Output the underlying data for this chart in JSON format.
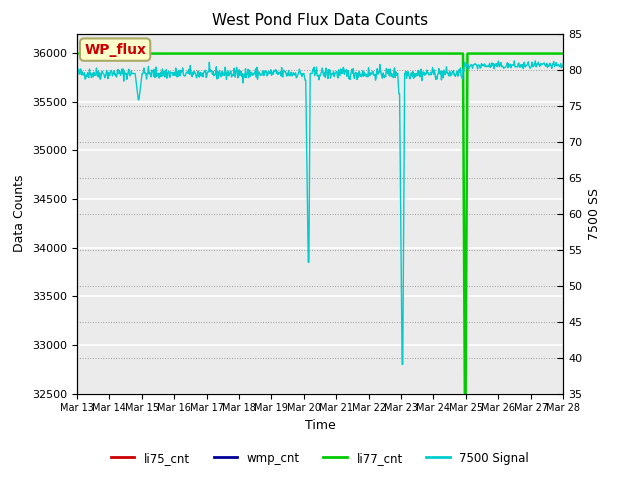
{
  "title": "West Pond Flux Data Counts",
  "ylabel_left": "Data Counts",
  "ylabel_right": "7500 SS",
  "xlabel": "Time",
  "ylim_left": [
    32500,
    36200
  ],
  "ylim_right": [
    35,
    85
  ],
  "fig_bg_color": "#ffffff",
  "plot_bg_color": "#ebebeb",
  "annotation_box_text": "WP_flux",
  "annotation_box_color": "#ffffcc",
  "annotation_box_textcolor": "#cc0000",
  "annotation_box_edgecolor": "#aaaa66",
  "x_tick_labels": [
    "Mar 13",
    "Mar 14",
    "Mar 15",
    "Mar 16",
    "Mar 17",
    "Mar 18",
    "Mar 19",
    "Mar 20",
    "Mar 21",
    "Mar 22",
    "Mar 23",
    "Mar 24",
    "Mar 25",
    "Mar 26",
    "Mar 27",
    "Mar 28"
  ],
  "line_colors": {
    "li75_cnt": "#cc0000",
    "wmp_cnt": "#000099",
    "li77_cnt": "#00cc00",
    "signal_7500": "#00cccc"
  },
  "left_ticks": [
    32500,
    33000,
    33500,
    34000,
    34500,
    35000,
    35500,
    36000
  ],
  "right_ticks": [
    35,
    40,
    45,
    50,
    55,
    60,
    65,
    70,
    75,
    80,
    85
  ]
}
